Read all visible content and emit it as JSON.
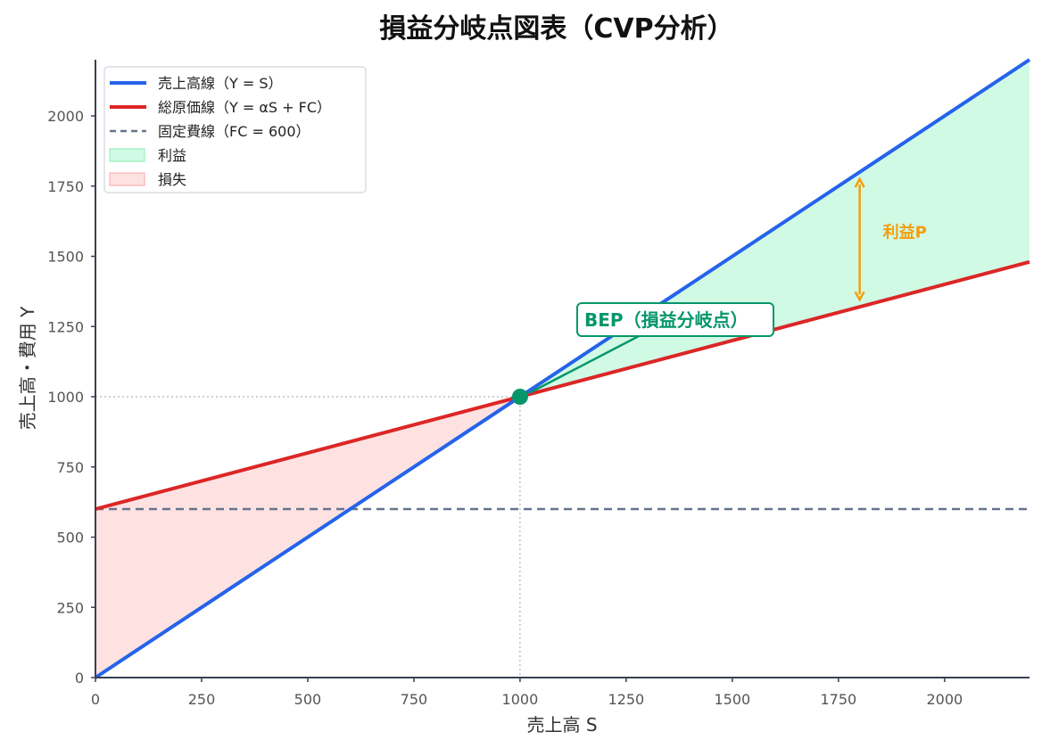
{
  "chart_data": {
    "type": "line",
    "title": "損益分岐点図表（CVP分析）",
    "xlabel": "売上高 S",
    "ylabel": "売上高・費用 Y",
    "xlim": [
      0,
      2200
    ],
    "ylim": [
      0,
      2200
    ],
    "x_ticks": [
      0,
      250,
      500,
      750,
      1000,
      1250,
      1500,
      1750,
      2000
    ],
    "y_ticks": [
      0,
      250,
      500,
      750,
      1000,
      1250,
      1500,
      1750,
      2000
    ],
    "grid": false,
    "legend_position": "top-left",
    "series": [
      {
        "name": "売上高線（Y = S）",
        "color": "#2563eb",
        "style": "solid",
        "x": [
          0,
          2200
        ],
        "y": [
          0,
          2200
        ]
      },
      {
        "name": "総原価線（Y = αS + FC）",
        "color": "#dc2626",
        "style": "solid",
        "x": [
          0,
          2200
        ],
        "y": [
          600,
          1480
        ]
      },
      {
        "name": "固定費線（FC = 600）",
        "color": "#64748b",
        "style": "dashed",
        "x": [
          0,
          2200
        ],
        "y": [
          600,
          600
        ]
      }
    ],
    "areas": [
      {
        "name": "利益",
        "color": "#d1fae5",
        "from_x": 1000,
        "to_x": 2200
      },
      {
        "name": "損失",
        "color": "#fee2e2",
        "from_x": 0,
        "to_x": 1000
      }
    ],
    "fixed_cost": 600,
    "variable_cost_ratio": 0.4,
    "break_even_point": {
      "x": 1000,
      "y": 1000
    },
    "annotations": {
      "bep_label": "BEP（損益分岐点）",
      "profit_label": "利益P",
      "profit_arrow_at_x": 1800
    }
  }
}
